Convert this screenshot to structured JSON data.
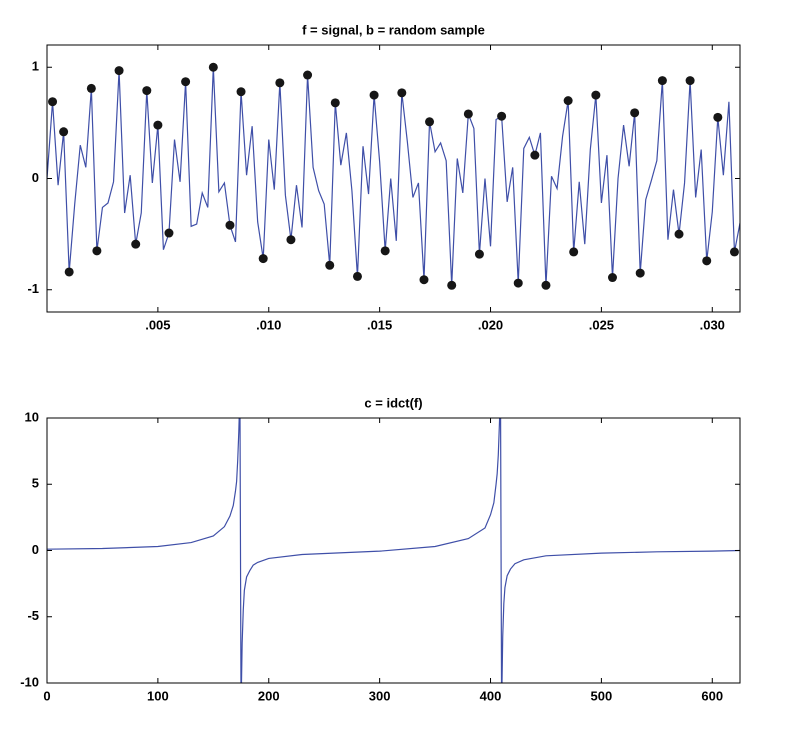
{
  "chart_data": [
    {
      "type": "line",
      "title": "f = signal, b = random sample",
      "xlim": [
        0,
        0.03125
      ],
      "ylim": [
        -1.2,
        1.2
      ],
      "xticks": [
        {
          "value": 0.005,
          "label": ".005"
        },
        {
          "value": 0.01,
          "label": ".010"
        },
        {
          "value": 0.015,
          "label": ".015"
        },
        {
          "value": 0.02,
          "label": ".020"
        },
        {
          "value": 0.025,
          "label": ".025"
        },
        {
          "value": 0.03,
          "label": ".030"
        }
      ],
      "yticks": [
        -1,
        0,
        1
      ],
      "series": [
        {
          "type": "line",
          "color": "#3f4fa8",
          "x": [
            0,
            0.00025,
            0.0005,
            0.00075,
            0.001,
            0.00125,
            0.0015,
            0.00175,
            0.002,
            0.00225,
            0.0025,
            0.00275,
            0.003,
            0.00325,
            0.0035,
            0.00375,
            0.004,
            0.00425,
            0.0045,
            0.00475,
            0.005,
            0.00525,
            0.0055,
            0.00575,
            0.006,
            0.00625,
            0.0065,
            0.00675,
            0.007,
            0.00725,
            0.0075,
            0.00775,
            0.008,
            0.00825,
            0.0085,
            0.00875,
            0.009,
            0.00925,
            0.0095,
            0.00975,
            0.01,
            0.01025,
            0.0105,
            0.01075,
            0.011,
            0.01125,
            0.0115,
            0.01175,
            0.012,
            0.01225,
            0.0125,
            0.01275,
            0.013,
            0.01325,
            0.0135,
            0.01375,
            0.014,
            0.01425,
            0.0145,
            0.01475,
            0.015,
            0.01525,
            0.0155,
            0.01575,
            0.016,
            0.01625,
            0.0165,
            0.01675,
            0.017,
            0.01725,
            0.0175,
            0.01775,
            0.018,
            0.01825,
            0.0185,
            0.01875,
            0.019,
            0.01925,
            0.0195,
            0.01975,
            0.02,
            0.02025,
            0.0205,
            0.02075,
            0.021,
            0.02125,
            0.0215,
            0.02175,
            0.022,
            0.02225,
            0.0225,
            0.02275,
            0.023,
            0.02325,
            0.0235,
            0.02375,
            0.024,
            0.02425,
            0.0245,
            0.02475,
            0.025,
            0.02525,
            0.0255,
            0.02575,
            0.026,
            0.02625,
            0.0265,
            0.02675,
            0.027,
            0.02725,
            0.0275,
            0.02775,
            0.028,
            0.02825,
            0.0285,
            0.02875,
            0.029,
            0.02925,
            0.0295,
            0.02975,
            0.03,
            0.03025,
            0.0305,
            0.03075,
            0.031,
            0.03125
          ],
          "values": [
            0,
            0.69,
            -0.06,
            0.42,
            -0.84,
            -0.23,
            0.3,
            0.1,
            0.81,
            -0.65,
            -0.26,
            -0.22,
            -0.03,
            0.97,
            -0.31,
            0.03,
            -0.59,
            -0.31,
            0.79,
            -0.04,
            0.48,
            -0.64,
            -0.49,
            0.35,
            -0.03,
            0.87,
            -0.43,
            -0.41,
            -0.13,
            -0.26,
            1,
            -0.12,
            -0.04,
            -0.42,
            -0.57,
            0.78,
            0.03,
            0.47,
            -0.39,
            -0.72,
            0.35,
            -0.1,
            0.86,
            -0.15,
            -0.55,
            -0.06,
            -0.44,
            0.93,
            0.1,
            -0.11,
            -0.23,
            -0.78,
            0.68,
            0.12,
            0.41,
            -0.11,
            -0.88,
            0.29,
            -0.14,
            0.75,
            0.15,
            -0.65,
            0,
            -0.56,
            0.77,
            0.33,
            -0.17,
            -0.04,
            -0.91,
            0.51,
            0.24,
            0.32,
            0.16,
            -0.96,
            0.18,
            -0.13,
            0.58,
            0.45,
            -0.68,
            0,
            -0.61,
            0.53,
            0.56,
            -0.21,
            0.1,
            -0.94,
            0.27,
            0.37,
            0.21,
            0.41,
            -0.96,
            0.02,
            -0.09,
            0.38,
            0.7,
            -0.66,
            -0.03,
            -0.59,
            0.26,
            0.75,
            -0.22,
            0.21,
            -0.89,
            0,
            0.48,
            0.11,
            0.59,
            -0.85,
            -0.19,
            -0.02,
            0.16,
            0.88,
            -0.55,
            -0.1,
            -0.5,
            -0.04,
            0.88,
            -0.17,
            0.26,
            -0.74,
            -0.3,
            0.55,
            0.03,
            0.69,
            -0.66,
            -0.4
          ]
        },
        {
          "type": "scatter",
          "color": "#161616",
          "x": [
            0.00025,
            0.00075,
            0.001,
            0.002,
            0.00225,
            0.00325,
            0.004,
            0.0045,
            0.005,
            0.0055,
            0.00625,
            0.0075,
            0.00825,
            0.00875,
            0.00975,
            0.0105,
            0.011,
            0.01175,
            0.01275,
            0.013,
            0.014,
            0.01475,
            0.01525,
            0.016,
            0.017,
            0.01725,
            0.01825,
            0.019,
            0.0195,
            0.0205,
            0.02125,
            0.022,
            0.0225,
            0.0235,
            0.02375,
            0.02475,
            0.0255,
            0.0265,
            0.02675,
            0.02775,
            0.0285,
            0.029,
            0.02975,
            0.03025,
            0.031
          ],
          "values": [
            0.69,
            0.42,
            -0.84,
            0.81,
            -0.65,
            0.97,
            -0.59,
            0.79,
            0.48,
            -0.49,
            0.87,
            1,
            -0.42,
            0.78,
            -0.72,
            0.86,
            -0.55,
            0.93,
            -0.78,
            0.68,
            -0.88,
            0.75,
            -0.65,
            0.77,
            -0.91,
            0.51,
            -0.96,
            0.58,
            -0.68,
            0.56,
            -0.94,
            0.21,
            -0.96,
            0.7,
            -0.66,
            0.75,
            -0.89,
            0.59,
            -0.85,
            0.88,
            -0.5,
            0.88,
            -0.74,
            0.55,
            -0.66
          ]
        }
      ]
    },
    {
      "type": "line",
      "title": "c = idct(f)",
      "xlim": [
        0,
        625
      ],
      "ylim": [
        -10,
        10
      ],
      "xticks": [
        0,
        100,
        200,
        300,
        400,
        500,
        600
      ],
      "yticks": [
        -10,
        -5,
        0,
        5,
        10
      ],
      "series": [
        {
          "type": "line",
          "color": "#3f4fa8",
          "x": [
            0,
            50,
            100,
            130,
            150,
            160,
            165,
            168,
            170,
            171,
            172,
            173,
            174,
            175,
            176,
            177,
            178,
            180,
            183,
            186,
            190,
            200,
            230,
            300,
            350,
            380,
            395,
            400,
            403,
            405,
            406,
            407,
            408,
            409,
            410,
            411,
            412,
            413,
            415,
            418,
            422,
            430,
            450,
            500,
            550,
            600,
            625
          ],
          "values": [
            0.1,
            0.15,
            0.3,
            0.6,
            1.1,
            1.8,
            2.6,
            3.4,
            4.5,
            5.2,
            6.8,
            9,
            12,
            -12,
            -7,
            -4.5,
            -3,
            -2,
            -1.5,
            -1.1,
            -0.9,
            -0.6,
            -0.3,
            -0.05,
            0.3,
            0.9,
            1.7,
            2.7,
            3.6,
            5,
            5.8,
            7.2,
            9.5,
            12,
            -12,
            -6.5,
            -4,
            -2.8,
            -1.9,
            -1.4,
            -1,
            -0.7,
            -0.4,
            -0.2,
            -0.1,
            -0.05,
            0
          ]
        }
      ]
    }
  ]
}
